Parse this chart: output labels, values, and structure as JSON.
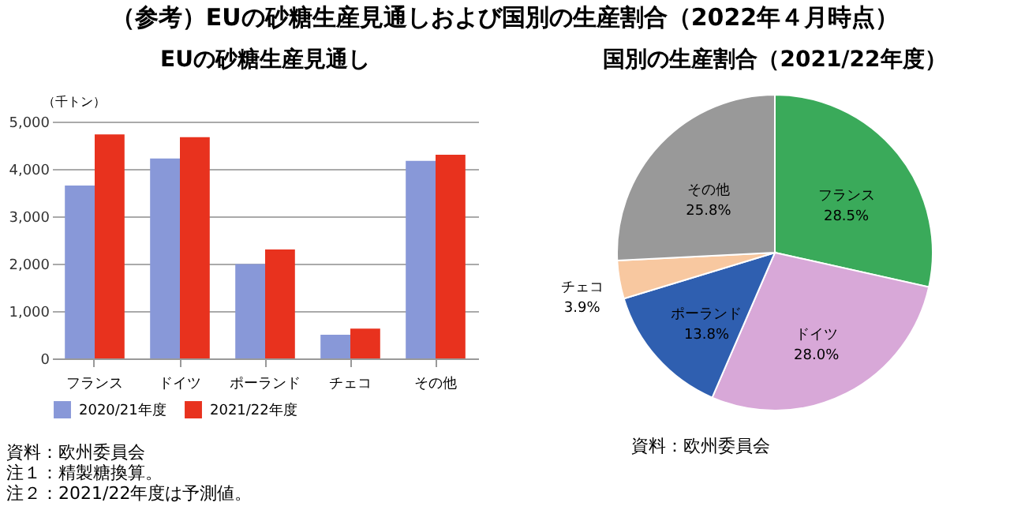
{
  "chart_data": [
    {
      "type": "bar",
      "title": "EUの砂糖生産見通し",
      "ylabel": "（千トン）",
      "categories": [
        "フランス",
        "ドイツ",
        "ポーランド",
        "チェコ",
        "その他"
      ],
      "series": [
        {
          "name": "2020/21年度",
          "color": "#8898d8",
          "values": [
            3650,
            4220,
            1990,
            500,
            4170
          ]
        },
        {
          "name": "2021/22年度",
          "color": "#e8321e",
          "values": [
            4730,
            4670,
            2300,
            630,
            4300
          ]
        }
      ],
      "ylim": [
        0,
        5000
      ],
      "yticks": [
        {
          "value": 0,
          "label": "0"
        },
        {
          "value": 1000,
          "label": "1,000"
        },
        {
          "value": 2000,
          "label": "2,000"
        },
        {
          "value": 3000,
          "label": "3,000"
        },
        {
          "value": 4000,
          "label": "4,000"
        },
        {
          "value": 5000,
          "label": "5,000"
        }
      ],
      "grid": "y",
      "legend": "bottom",
      "annotations": [
        "（参考）EUの砂糖生産見通しおよび国別の生産割合（2022年４月時点）",
        "資料：欧州委員会",
        "注１：精製糖換算。",
        "注２：2021/22年度は予測値。"
      ]
    },
    {
      "type": "pie",
      "title": "国別の生産割合（2021/22年度）",
      "categories": [
        "フランス",
        "ドイツ",
        "ポーランド",
        "チェコ",
        "その他"
      ],
      "values": [
        28.5,
        28.0,
        13.8,
        3.9,
        25.8
      ],
      "value_labels": [
        "28.5%",
        "28.0%",
        "13.8%",
        "3.9%",
        "25.8%"
      ],
      "colors": [
        "#3aaa5a",
        "#d8a8d8",
        "#2f5fb0",
        "#f8c8a0",
        "#999999"
      ],
      "data_labels": true,
      "annotations": [
        "資料：欧州委員会"
      ]
    }
  ]
}
